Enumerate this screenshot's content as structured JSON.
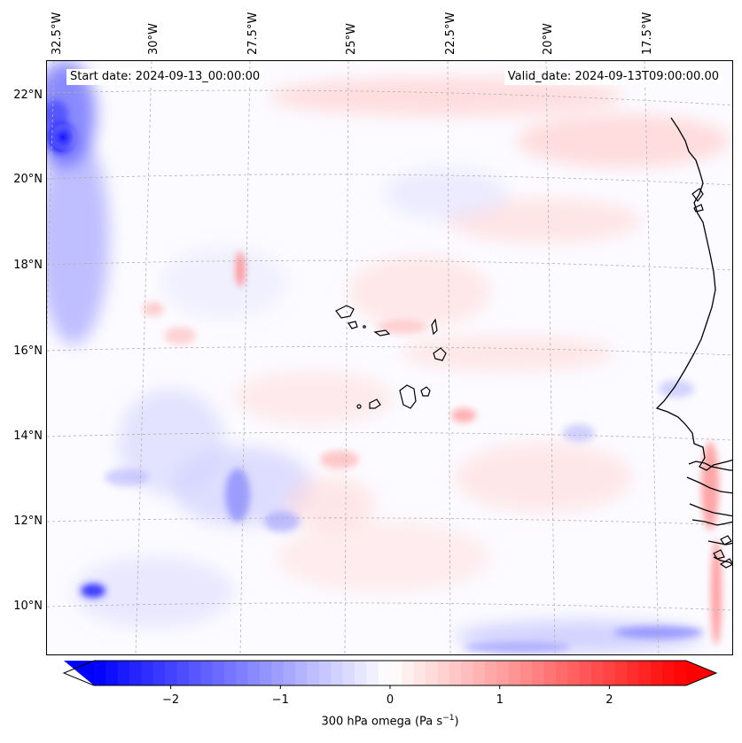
{
  "map": {
    "start_label": "Start date: 2024-09-13_00:00:00",
    "valid_label": "Valid_date: 2024-09-13T09:00:00.00",
    "lon_ticks": [
      "32.5°W",
      "30°W",
      "27.5°W",
      "25°W",
      "22.5°W",
      "20°W",
      "17.5°W"
    ],
    "lat_ticks": [
      "22°N",
      "20°N",
      "18°N",
      "16°N",
      "14°N",
      "12°N",
      "10°N"
    ],
    "variable": "300 hPa omega",
    "units": "Pa s",
    "units_exponent": "−1",
    "coast_color": "#000000",
    "grid_color": "#b0b0b0"
  },
  "colorbar": {
    "cmap": "bwr",
    "vmin": -2.7,
    "vmax": 2.7,
    "ticks": [
      -2,
      -1,
      0,
      1,
      2
    ],
    "tick_labels": [
      "−2",
      "−1",
      "0",
      "1",
      "2"
    ],
    "low_color": "#0000ff",
    "mid_color": "#ffffff",
    "high_color": "#ff0000"
  }
}
